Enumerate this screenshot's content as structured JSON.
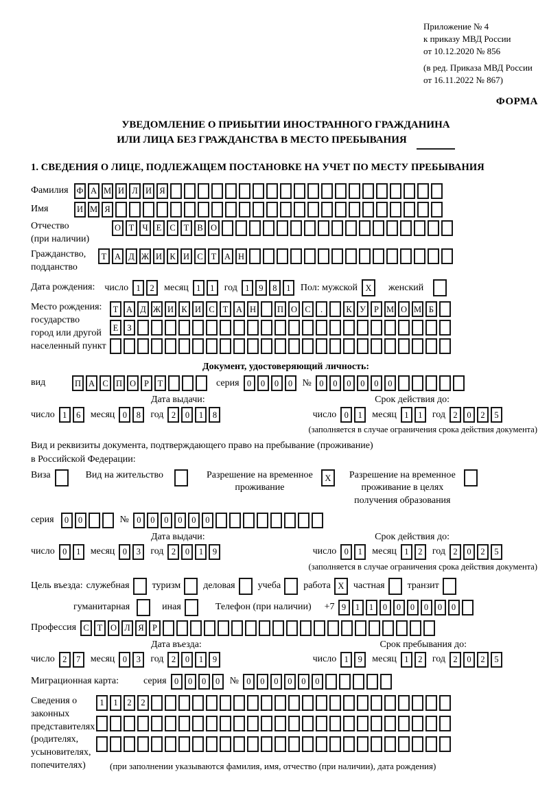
{
  "header": {
    "lines": [
      "Приложение № 4",
      "к приказу МВД России",
      "от 10.12.2020 № 856",
      "(в ред. Приказа МВД России",
      "от 16.11.2022 № 867)"
    ],
    "form_label": "ФОРМА"
  },
  "title": {
    "line1": "УВЕДОМЛЕНИЕ О ПРИБЫТИИ ИНОСТРАННОГО ГРАЖДАНИНА",
    "line2": "ИЛИ ЛИЦА БЕЗ ГРАЖДАНСТВА В МЕСТО ПРЕБЫВАНИЯ"
  },
  "section1_heading": "1. СВЕДЕНИЯ О ЛИЦЕ, ПОДЛЕЖАЩЕМ ПОСТАНОВКЕ НА УЧЕТ ПО МЕСТУ ПРЕБЫВАНИЯ",
  "surname": {
    "label": "Фамилия",
    "value": "ФАМИЛИЯ",
    "length": 27
  },
  "firstname": {
    "label": "Имя",
    "value": "ИМЯ",
    "length": 27
  },
  "patronymic": {
    "label_line1": "Отчество",
    "label_line2": "(при наличии)",
    "value": "ОТЧЕСТВО",
    "length": 25
  },
  "citizenship": {
    "label_line1": "Гражданство,",
    "label_line2": "подданство",
    "value": "ТАДЖИКИСТАН",
    "length": 26
  },
  "birth_date": {
    "label": "Дата рождения:",
    "day_label": "число",
    "day": {
      "value": "12",
      "length": 2
    },
    "month_label": "месяц",
    "month": {
      "value": "11",
      "length": 2
    },
    "year_label": "год",
    "year": {
      "value": "1981",
      "length": 4
    },
    "sex_label": "Пол: мужской",
    "male": {
      "value": "X",
      "length": 1
    },
    "female_label": "женский",
    "female": {
      "value": "",
      "length": 1
    }
  },
  "birth_place": {
    "label_lines": [
      "Место рождения:",
      "государство",
      "город или другой",
      "населенный пункт"
    ],
    "rows": [
      {
        "value": "ТАДЖИКИСТАН ПОС. КУРМОМБ",
        "length": 25
      },
      {
        "value": "ЕЗ",
        "length": 25
      },
      {
        "value": "",
        "length": 25
      }
    ]
  },
  "identity_doc": {
    "heading": "Документ, удостоверяющий личность:",
    "kind_label": "вид",
    "kind": {
      "value": "ПАСПОРТ",
      "length": 10
    },
    "series_label": "серия",
    "series": {
      "value": "0000",
      "length": 4
    },
    "number_label": "№",
    "number": {
      "value": "000000",
      "length": 11
    },
    "issue_header": "Дата выдачи:",
    "valid_header": "Срок действия до:",
    "issue": {
      "day_label": "число",
      "day": {
        "value": "16",
        "length": 2
      },
      "month_label": "месяц",
      "month": {
        "value": "08",
        "length": 2
      },
      "year_label": "год",
      "year": {
        "value": "2018",
        "length": 4
      }
    },
    "valid": {
      "day_label": "число",
      "day": {
        "value": "01",
        "length": 2
      },
      "month_label": "месяц",
      "month": {
        "value": "11",
        "length": 2
      },
      "year_label": "год",
      "year": {
        "value": "2025",
        "length": 4
      }
    },
    "note": "(заполняется в случае ограничения срока действия документа)"
  },
  "residence_doc": {
    "intro_line1": "Вид и реквизиты документа, подтверждающего право на пребывание (проживание)",
    "intro_line2": "в Российской Федерации:",
    "visa_label": "Виза",
    "visa": {
      "value": "",
      "length": 1
    },
    "permit_label": "Вид на жительство",
    "permit": {
      "value": "",
      "length": 1
    },
    "temp_label_line1": "Разрешение на временное",
    "temp_label_line2": "проживание",
    "temp": {
      "value": "X",
      "length": 1
    },
    "edu_label_line1": "Разрешение на временное",
    "edu_label_line2": "проживание в целях",
    "edu_label_line3": "получения образования",
    "edu": {
      "value": "",
      "length": 1
    },
    "series_label": "серия",
    "series": {
      "value": "00",
      "length": 4
    },
    "number_label": "№",
    "number": {
      "value": "000000",
      "length": 14
    },
    "issue_header": "Дата выдачи:",
    "valid_header": "Срок действия до:",
    "issue": {
      "day_label": "число",
      "day": {
        "value": "01",
        "length": 2
      },
      "month_label": "месяц",
      "month": {
        "value": "03",
        "length": 2
      },
      "year_label": "год",
      "year": {
        "value": "2019",
        "length": 4
      }
    },
    "valid": {
      "day_label": "число",
      "day": {
        "value": "01",
        "length": 2
      },
      "month_label": "месяц",
      "month": {
        "value": "12",
        "length": 2
      },
      "year_label": "год",
      "year": {
        "value": "2025",
        "length": 4
      }
    },
    "note": "(заполняется в случае ограничения срока действия документа)"
  },
  "purpose": {
    "label": "Цель въезда:",
    "options_row1": [
      {
        "label": "служебная",
        "box": {
          "value": "",
          "length": 1
        }
      },
      {
        "label": "туризм",
        "box": {
          "value": "",
          "length": 1
        }
      },
      {
        "label": "деловая",
        "box": {
          "value": "",
          "length": 1
        }
      },
      {
        "label": "учеба",
        "box": {
          "value": "",
          "length": 1
        }
      },
      {
        "label": "работа",
        "box": {
          "value": "X",
          "length": 1
        }
      },
      {
        "label": "частная",
        "box": {
          "value": "",
          "length": 1
        }
      },
      {
        "label": "транзит",
        "box": {
          "value": "",
          "length": 1
        }
      }
    ],
    "options_row2": [
      {
        "label": "гуманитарная",
        "box": {
          "value": "",
          "length": 1
        }
      },
      {
        "label": "иная",
        "box": {
          "value": "",
          "length": 1
        }
      }
    ],
    "phone_label": "Телефон (при наличии)",
    "phone_prefix": "+7",
    "phone": {
      "value": "911000000",
      "length": 10
    }
  },
  "profession": {
    "label": "Профессия",
    "value": "СТОЛЯР",
    "length": 26
  },
  "entry": {
    "issue_header": "Дата въезда:",
    "valid_header": "Срок пребывания до:",
    "issue": {
      "day_label": "число",
      "day": {
        "value": "27",
        "length": 2
      },
      "month_label": "месяц",
      "month": {
        "value": "03",
        "length": 2
      },
      "year_label": "год",
      "year": {
        "value": "2019",
        "length": 4
      }
    },
    "valid": {
      "day_label": "число",
      "day": {
        "value": "19",
        "length": 2
      },
      "month_label": "месяц",
      "month": {
        "value": "12",
        "length": 2
      },
      "year_label": "год",
      "year": {
        "value": "2025",
        "length": 4
      }
    }
  },
  "migration_card": {
    "label": "Миграционная карта:",
    "series_label": "серия",
    "series": {
      "value": "0000",
      "length": 4
    },
    "number_label": "№",
    "number": {
      "value": "000000",
      "length": 11
    }
  },
  "representatives": {
    "label_lines": [
      "Сведения о",
      "законных",
      "представителях",
      "(родителях,",
      "усыновителях,",
      "попечителях)"
    ],
    "rows": [
      {
        "value": "1122",
        "length": 26
      },
      {
        "value": "",
        "length": 26
      },
      {
        "value": "",
        "length": 26
      }
    ],
    "note": "(при заполнении указываются фамилия, имя, отчество (при наличии), дата рождения)"
  }
}
